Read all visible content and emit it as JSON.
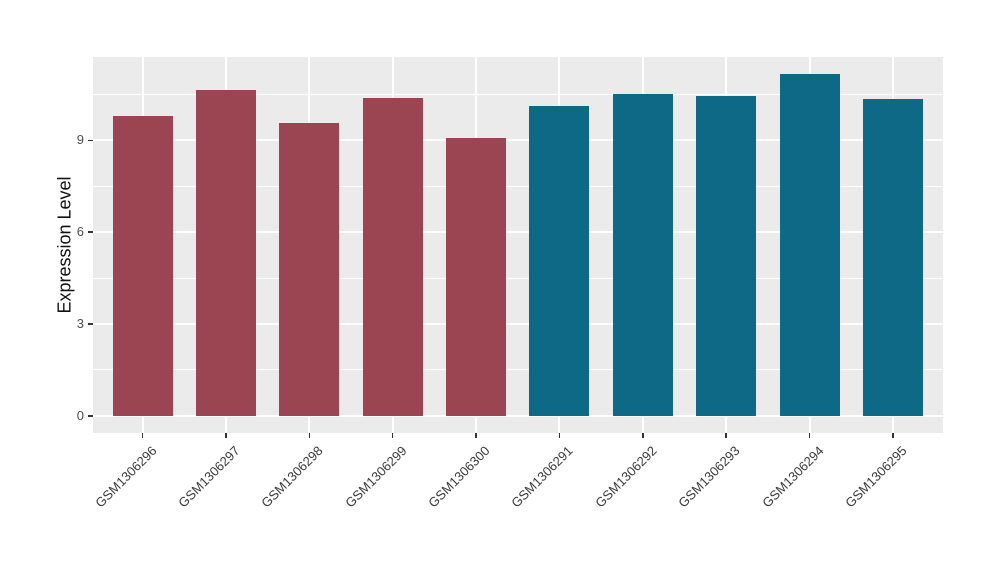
{
  "figure": {
    "background": "#FFFFFF",
    "panel_background": "#EBEBEB",
    "grid_color": "#FFFFFF",
    "tick_color": "#333333",
    "axis_text_color": "#4D4D4D"
  },
  "chart_data": {
    "type": "bar",
    "title": "",
    "xlabel": "",
    "ylabel": "Expression Level",
    "categories": [
      "GSM1306296",
      "GSM1306297",
      "GSM1306298",
      "GSM1306299",
      "GSM1306300",
      "GSM1306291",
      "GSM1306292",
      "GSM1306293",
      "GSM1306294",
      "GSM1306295"
    ],
    "values": [
      9.78,
      10.63,
      9.56,
      10.37,
      9.06,
      10.11,
      10.5,
      10.43,
      11.15,
      10.34
    ],
    "bar_colors": [
      "#9B4452",
      "#9B4452",
      "#9B4452",
      "#9B4452",
      "#9B4452",
      "#0E6987",
      "#0E6987",
      "#0E6987",
      "#0E6987",
      "#0E6987"
    ],
    "group_colors": {
      "left_group": "#9B4452",
      "right_group": "#0E6987"
    },
    "yticks": [
      0,
      3,
      6,
      9
    ],
    "ytick_labels": [
      "0",
      "3",
      "6",
      "9"
    ],
    "minor_gridlines": [
      1.5,
      4.5,
      7.5,
      10.5
    ],
    "ylim": [
      -0.56,
      11.72
    ],
    "grid": true,
    "legend": "none"
  }
}
